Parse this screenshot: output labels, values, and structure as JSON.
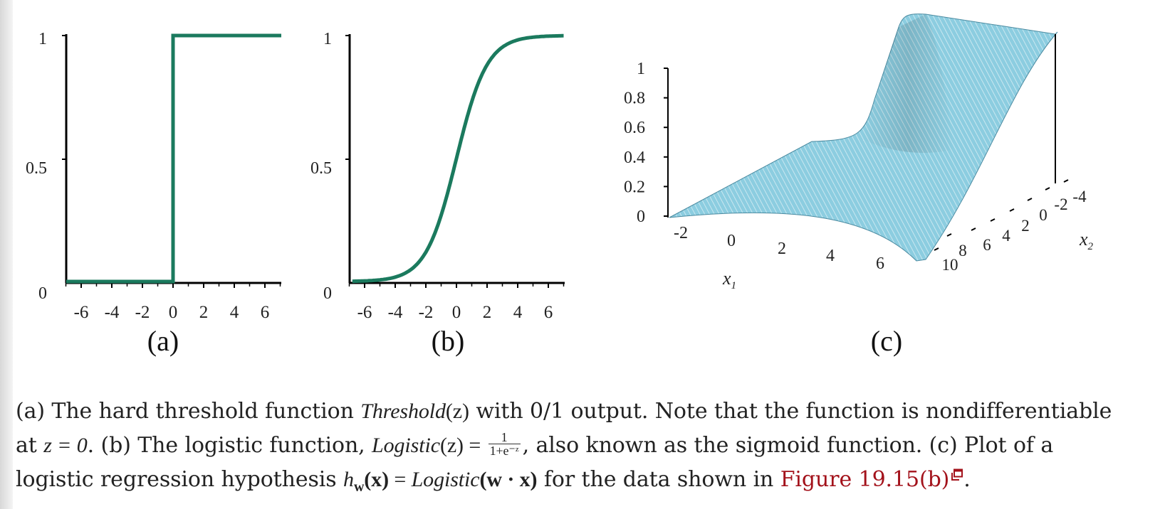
{
  "panel_a": {
    "label": "(a)",
    "y_ticks": [
      "1",
      "0.5",
      "0"
    ],
    "x_ticks": [
      "-6",
      "-4",
      "-2",
      "0",
      "2",
      "4",
      "6"
    ]
  },
  "panel_b": {
    "label": "(b)",
    "y_ticks": [
      "1",
      "0.5",
      "0"
    ],
    "x_ticks": [
      "-6",
      "-4",
      "-2",
      "0",
      "2",
      "4",
      "6"
    ]
  },
  "panel_c": {
    "label": "(c)",
    "z_ticks": [
      "1",
      "0.8",
      "0.6",
      "0.4",
      "0.2",
      "0"
    ],
    "x1_ticks": [
      "-2",
      "0",
      "2",
      "4",
      "6"
    ],
    "x1_label": "x",
    "x1_sub": "1",
    "x2_ticks": [
      "10",
      "8",
      "6",
      "4",
      "2",
      "0",
      "-2",
      "-4"
    ],
    "x2_label": "x",
    "x2_sub": "2",
    "surface_color": "#8ccde0",
    "mesh_color": "#ffffff"
  },
  "curve_color": "#1b7a5e",
  "caption": {
    "p1": "(a) The hard threshold function ",
    "threshold_fn": "Threshold",
    "arg_z": "(z)",
    "p2": " with 0/1 output. Note that the function is nondifferentiable",
    "p3": "at ",
    "z_eq_0": "z = 0",
    "p4": ". (b) The logistic function, ",
    "logistic_fn": "Logistic",
    "eq": " = ",
    "frac_num": "1",
    "frac_den": "1+e⁻ᶻ",
    "p5": ", also known as the sigmoid function. (c) Plot of a",
    "p6": "logistic regression hypothesis ",
    "h": "h",
    "h_sub": "w",
    "x_bold": "(x)",
    "p7": " = ",
    "logistic_fn2": "Logistic",
    "w_dot_x": "(w · x)",
    "p8": " for the data shown in ",
    "link_text": "Figure 19.15(b)",
    "p9": "."
  }
}
